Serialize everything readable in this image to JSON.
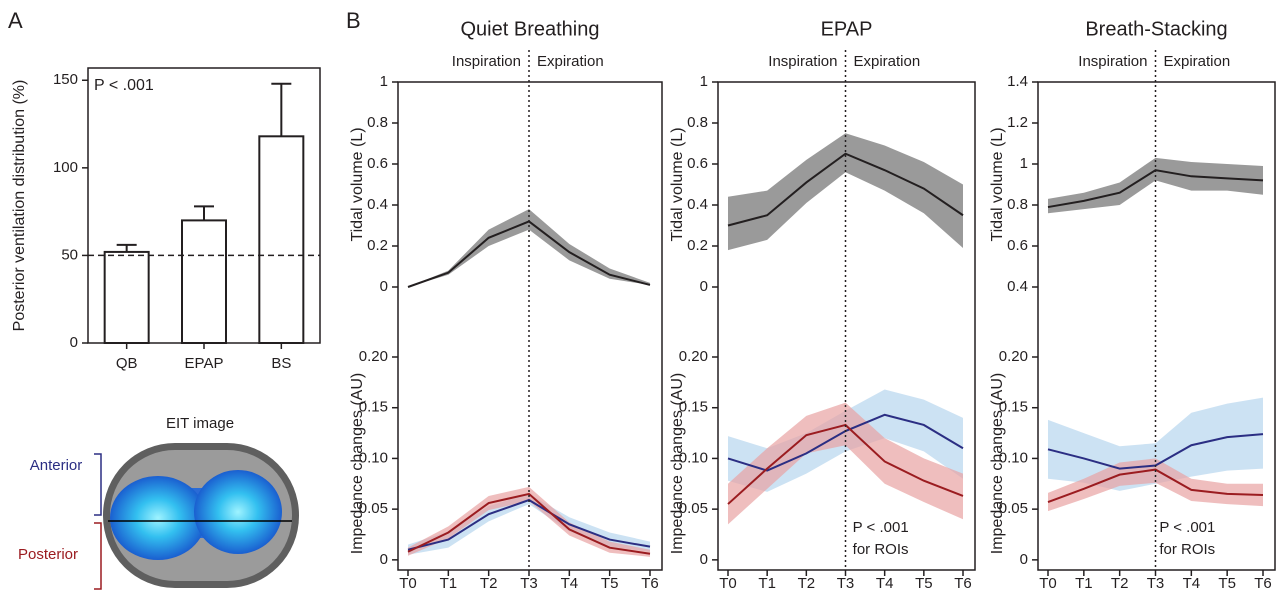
{
  "panels": [
    "A",
    "B"
  ],
  "eit_image": {
    "title": "EIT image",
    "anterior": "Anterior",
    "posterior": "Posterior"
  },
  "chart_data": [
    {
      "type": "bar",
      "ylabel": "Posterior ventilation distribution (%)",
      "annotation": "P < .001",
      "categories": [
        "QB",
        "EPAP",
        "BS"
      ],
      "values": [
        52,
        70,
        118
      ],
      "errors": [
        4,
        8,
        30
      ],
      "color": "#ffffff",
      "ylim": [
        0,
        157
      ],
      "yticks": [
        0,
        50,
        100,
        150
      ],
      "reference_line": 50
    },
    {
      "type": "band-line",
      "title": "Quiet Breathing",
      "phases": [
        "Inspiration",
        "Expiration"
      ],
      "categories": [
        "T0",
        "T1",
        "T2",
        "T3",
        "T4",
        "T5",
        "T6"
      ],
      "divider": "T3",
      "ylabel": "Tidal volume (L)",
      "ylim": [
        0,
        1
      ],
      "yticks": [
        0,
        0.2,
        0.4,
        0.6,
        0.8,
        1
      ],
      "y2label": "Impedance changes (AU)",
      "y2lim": [
        -0.01,
        0.2
      ],
      "y2ticks": [
        0,
        0.05,
        {
          "value": 0.1,
          "label": "0.10"
        },
        0.15,
        {
          "value": 0.2,
          "label": "0.20"
        }
      ],
      "series": [
        {
          "color": "#231f20",
          "band_color": "#9a9a9a",
          "values": [
            0,
            0.07,
            0.24,
            0.32,
            0.17,
            0.06,
            0.01
          ],
          "lower": [
            0,
            0.06,
            0.2,
            0.28,
            0.13,
            0.04,
            0.01
          ],
          "upper": [
            0,
            0.08,
            0.28,
            0.38,
            0.21,
            0.09,
            0.02
          ]
        },
        {
          "axis": "y2",
          "color": "#2b2e83",
          "band_color": "#b7d5ee",
          "values": [
            0.01,
            0.02,
            0.045,
            0.059,
            0.035,
            0.02,
            0.013
          ],
          "lower": [
            0.005,
            0.012,
            0.038,
            0.055,
            0.028,
            0.013,
            0.008
          ],
          "upper": [
            0.015,
            0.028,
            0.053,
            0.065,
            0.042,
            0.027,
            0.018
          ]
        },
        {
          "axis": "y2",
          "color": "#9b1c20",
          "band_color": "#e8a3a3",
          "values": [
            0.008,
            0.027,
            0.056,
            0.065,
            0.03,
            0.012,
            0.006
          ],
          "lower": [
            0.004,
            0.021,
            0.049,
            0.058,
            0.024,
            0.007,
            0.003
          ],
          "upper": [
            0.012,
            0.033,
            0.063,
            0.072,
            0.037,
            0.018,
            0.01
          ]
        }
      ]
    },
    {
      "type": "band-line",
      "title": "EPAP",
      "phases": [
        "Inspiration",
        "Expiration"
      ],
      "categories": [
        "T0",
        "T1",
        "T2",
        "T3",
        "T4",
        "T5",
        "T6"
      ],
      "divider": "T3",
      "ylabel": "Tidal volume (L)",
      "ylim": [
        0,
        1
      ],
      "yticks": [
        0,
        0.2,
        0.4,
        0.6,
        0.8,
        1
      ],
      "y2label": "Impedance changes (AU)",
      "y2lim": [
        -0.01,
        0.2
      ],
      "y2ticks": [
        0,
        0.05,
        {
          "value": 0.1,
          "label": "0.10"
        },
        0.15,
        {
          "value": 0.2,
          "label": "0.20"
        }
      ],
      "annotation": [
        "P < .001",
        "for ROIs"
      ],
      "series": [
        {
          "color": "#231f20",
          "band_color": "#9a9a9a",
          "values": [
            0.3,
            0.35,
            0.51,
            0.65,
            0.57,
            0.48,
            0.35
          ],
          "lower": [
            0.18,
            0.23,
            0.41,
            0.56,
            0.47,
            0.36,
            0.19
          ],
          "upper": [
            0.44,
            0.47,
            0.62,
            0.75,
            0.69,
            0.61,
            0.5
          ]
        },
        {
          "axis": "y2",
          "color": "#2b2e83",
          "band_color": "#b7d5ee",
          "values": [
            0.1,
            0.088,
            0.105,
            0.127,
            0.143,
            0.133,
            0.11
          ],
          "lower": [
            0.078,
            0.067,
            0.085,
            0.107,
            0.12,
            0.107,
            0.08
          ],
          "upper": [
            0.122,
            0.11,
            0.125,
            0.147,
            0.168,
            0.158,
            0.14
          ]
        },
        {
          "axis": "y2",
          "color": "#9b1c20",
          "band_color": "#e8a3a3",
          "values": [
            0.055,
            0.09,
            0.123,
            0.133,
            0.097,
            0.078,
            0.063
          ],
          "lower": [
            0.035,
            0.07,
            0.105,
            0.113,
            0.075,
            0.057,
            0.04
          ],
          "upper": [
            0.075,
            0.11,
            0.142,
            0.155,
            0.12,
            0.1,
            0.085
          ]
        }
      ]
    },
    {
      "type": "band-line",
      "title": "Breath-Stacking",
      "phases": [
        "Inspiration",
        "Expiration"
      ],
      "categories": [
        "T0",
        "T1",
        "T2",
        "T3",
        "T4",
        "T5",
        "T6"
      ],
      "divider": "T3",
      "ylabel": "Tidal volume (L)",
      "ylim": [
        0.4,
        1.4
      ],
      "yticks": [
        0.4,
        0.6,
        0.8,
        1,
        1.2,
        1.4
      ],
      "y2label": "Impedance changes (AU)",
      "y2lim": [
        -0.01,
        0.2
      ],
      "y2ticks": [
        0,
        0.05,
        {
          "value": 0.1,
          "label": "0.10"
        },
        0.15,
        {
          "value": 0.2,
          "label": "0.20"
        }
      ],
      "annotation": [
        "P < .001",
        "for ROIs"
      ],
      "series": [
        {
          "color": "#231f20",
          "band_color": "#9a9a9a",
          "values": [
            0.79,
            0.82,
            0.86,
            0.97,
            0.94,
            0.93,
            0.92
          ],
          "lower": [
            0.76,
            0.78,
            0.8,
            0.92,
            0.87,
            0.87,
            0.85
          ],
          "upper": [
            0.83,
            0.86,
            0.91,
            1.03,
            1.01,
            1.0,
            0.99
          ]
        },
        {
          "axis": "y2",
          "color": "#2b2e83",
          "band_color": "#b7d5ee",
          "values": [
            0.109,
            0.1,
            0.09,
            0.093,
            0.113,
            0.121,
            0.124
          ],
          "lower": [
            0.08,
            0.076,
            0.068,
            0.075,
            0.082,
            0.088,
            0.09
          ],
          "upper": [
            0.138,
            0.125,
            0.112,
            0.115,
            0.145,
            0.154,
            0.16
          ]
        },
        {
          "axis": "y2",
          "color": "#9b1c20",
          "band_color": "#e8a3a3",
          "values": [
            0.057,
            0.07,
            0.084,
            0.089,
            0.069,
            0.065,
            0.064
          ],
          "lower": [
            0.048,
            0.06,
            0.073,
            0.076,
            0.058,
            0.055,
            0.053
          ],
          "upper": [
            0.066,
            0.08,
            0.096,
            0.1,
            0.08,
            0.075,
            0.075
          ]
        }
      ]
    }
  ]
}
